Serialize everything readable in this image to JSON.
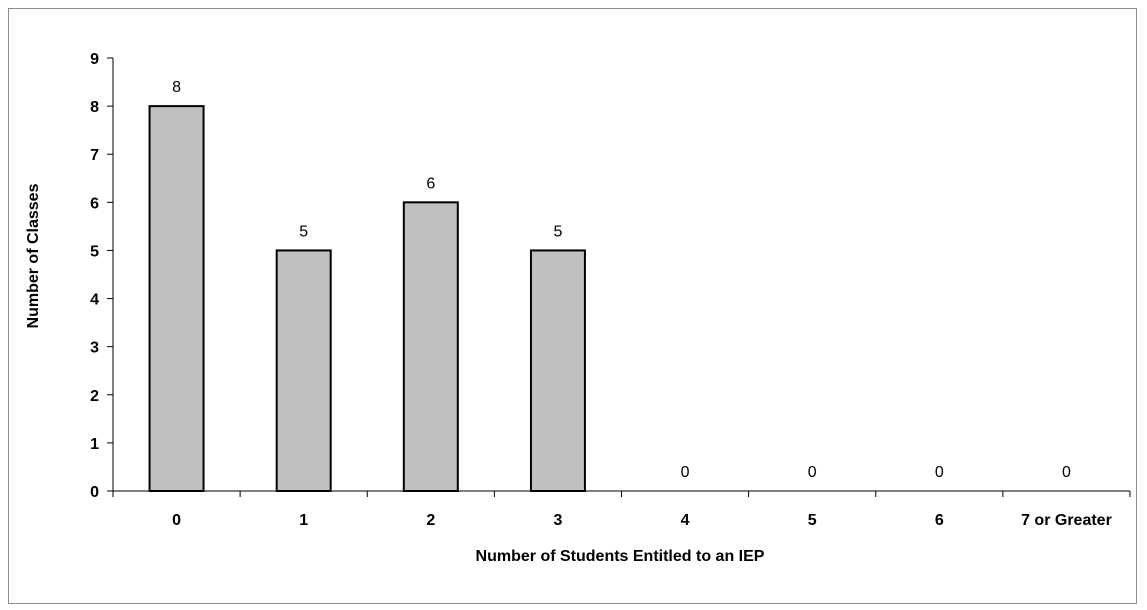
{
  "chart_data": {
    "type": "bar",
    "title": "",
    "xlabel": "Number of Students Entitled to an IEP",
    "ylabel": "Number of Classes",
    "categories": [
      "0",
      "1",
      "2",
      "3",
      "4",
      "5",
      "6",
      "7 or Greater"
    ],
    "values": [
      8,
      5,
      6,
      5,
      0,
      0,
      0,
      0
    ],
    "data_labels": [
      "8",
      "5",
      "6",
      "5",
      "0",
      "0",
      "0",
      "0"
    ],
    "ylim": [
      0,
      9
    ],
    "yticks": [
      "0",
      "1",
      "2",
      "3",
      "4",
      "5",
      "6",
      "7",
      "8",
      "9"
    ],
    "grid": false,
    "legend": "none",
    "bar_color": "#c0c0c0",
    "bar_edge_color": "#000000"
  }
}
